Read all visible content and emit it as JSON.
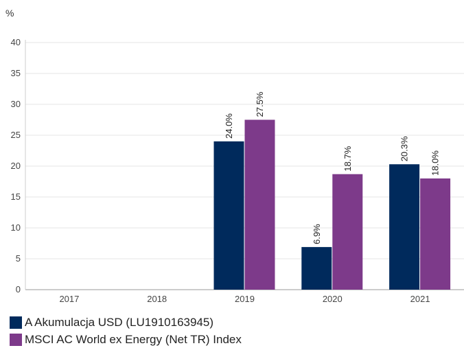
{
  "chart_data": {
    "type": "bar",
    "unit_label": "%",
    "categories": [
      "2017",
      "2018",
      "2019",
      "2020",
      "2021"
    ],
    "series": [
      {
        "name": "A Akumulacja USD (LU1910163945)",
        "color": "#002a5c",
        "values": [
          null,
          null,
          24.0,
          6.9,
          20.3
        ],
        "labels": [
          "",
          "",
          "24.0%",
          "6.9%",
          "20.3%"
        ]
      },
      {
        "name": "MSCI AC World ex Energy (Net TR) Index",
        "color": "#7d3a8a",
        "values": [
          null,
          null,
          27.5,
          18.7,
          18.0
        ],
        "labels": [
          "",
          "",
          "27.5%",
          "18.7%",
          "18.0%"
        ]
      }
    ],
    "ylim": [
      0,
      40
    ],
    "yticks": [
      0,
      5,
      10,
      15,
      20,
      25,
      30,
      35,
      40
    ],
    "grid": true,
    "legend_position": "bottom-left"
  }
}
